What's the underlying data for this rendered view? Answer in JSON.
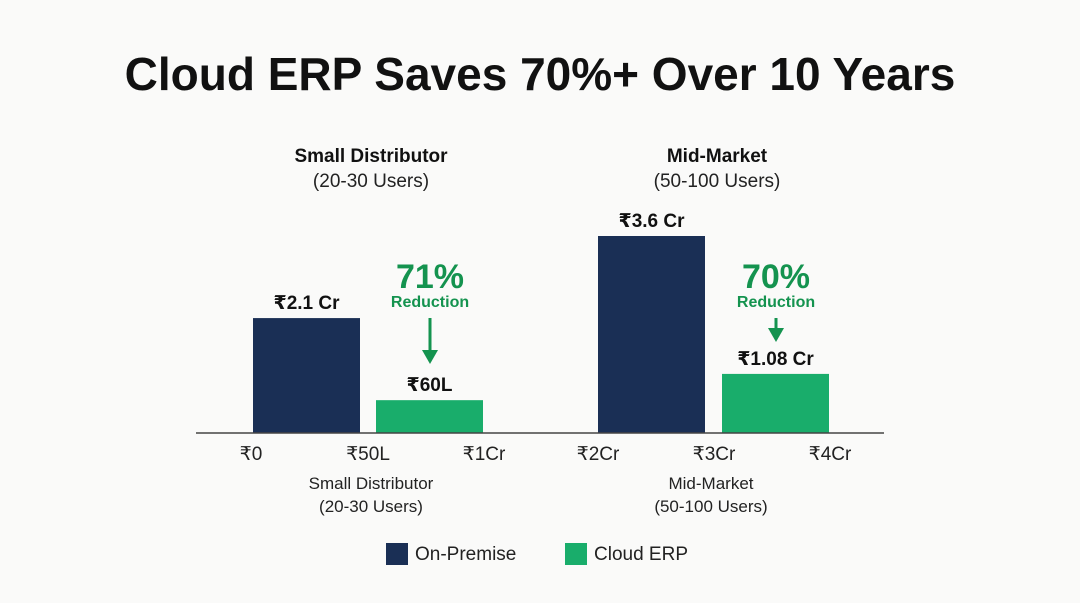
{
  "chart_data": {
    "type": "bar",
    "title": "Cloud ERP Saves 70%+ Over 10 Years",
    "unit": "₹ Cr (10-year total cost)",
    "groups": [
      {
        "name": "Small Distributor",
        "subtitle": "(20-30 Users)",
        "axis_label": "Small Distributor",
        "axis_sublabel": "(20-30 Users)",
        "bars": [
          {
            "series": "On-Premise",
            "value": 2.1,
            "label": "₹2.1 Cr"
          },
          {
            "series": "Cloud ERP",
            "value": 0.6,
            "label": "₹60L"
          }
        ],
        "reduction": {
          "percent": "71%",
          "text": "Reduction"
        }
      },
      {
        "name": "Mid-Market",
        "subtitle": "(50-100 Users)",
        "axis_label": "Mid-Market",
        "axis_sublabel": "(50-100 Users)",
        "bars": [
          {
            "series": "On-Premise",
            "value": 3.6,
            "label": "₹3.6 Cr"
          },
          {
            "series": "Cloud ERP",
            "value": 1.08,
            "label": "₹1.08 Cr"
          }
        ],
        "reduction": {
          "percent": "70%",
          "text": "Reduction"
        }
      }
    ],
    "x_ticks": [
      "₹0",
      "₹50L",
      "₹1Cr",
      "₹2Cr",
      "₹3Cr",
      "₹4Cr"
    ],
    "legend": [
      {
        "name": "On-Premise",
        "color": "#1a2f55"
      },
      {
        "name": "Cloud ERP",
        "color": "#19ad6b"
      }
    ],
    "colors": {
      "on_premise": "#1a2f55",
      "cloud_erp": "#19ad6b",
      "reduction": "#14934f",
      "axis": "#444444"
    },
    "legend_position": "bottom-center",
    "grid": false
  }
}
